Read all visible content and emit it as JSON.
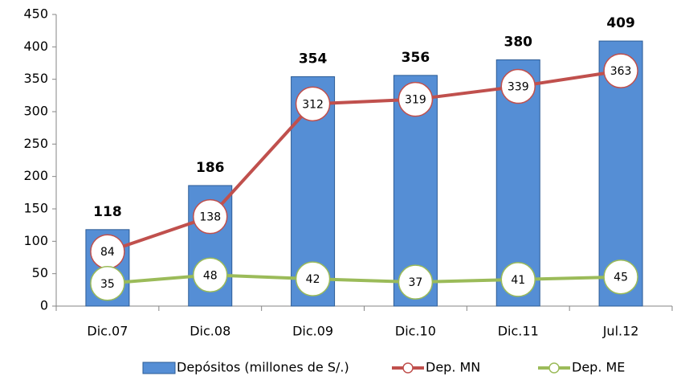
{
  "chart_data": {
    "type": "bar",
    "categories": [
      "Dic.07",
      "Dic.08",
      "Dic.09",
      "Dic.10",
      "Dic.11",
      "Jul.12"
    ],
    "series": [
      {
        "name": "Depósitos (millones de S/.)",
        "type": "bar",
        "color": "#558ed5",
        "values": [
          118,
          186,
          354,
          356,
          380,
          409
        ]
      },
      {
        "name": "Dep. MN",
        "type": "line",
        "color": "#c0504d",
        "values": [
          84,
          138,
          312,
          319,
          339,
          363
        ]
      },
      {
        "name": "Dep. ME",
        "type": "line",
        "color": "#9bbb59",
        "values": [
          35,
          48,
          42,
          37,
          41,
          45
        ]
      }
    ],
    "ylim": [
      0,
      450
    ],
    "yticks": [
      0,
      50,
      100,
      150,
      200,
      250,
      300,
      350,
      400,
      450
    ],
    "grid": false,
    "legend": "bottom"
  }
}
